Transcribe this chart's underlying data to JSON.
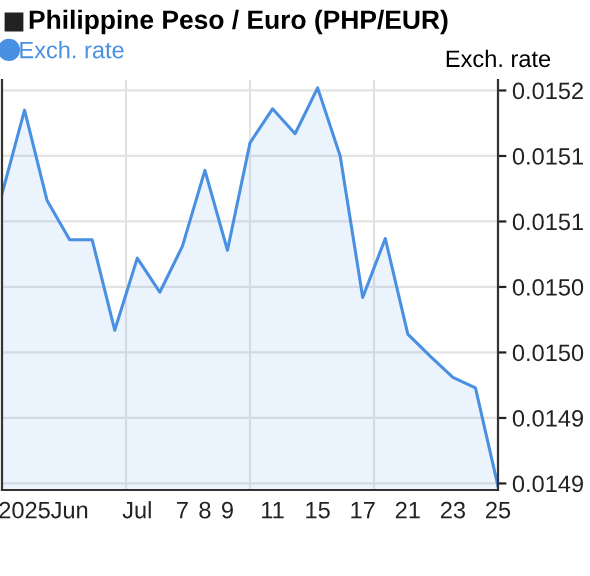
{
  "chart_data": {
    "type": "area",
    "title": "Philippine Peso / Euro (PHP/EUR)",
    "ylabel": "Exch. rate",
    "categories": [
      null,
      "2025",
      null,
      "Jun",
      null,
      null,
      "Jul",
      null,
      "7",
      "8",
      "9",
      null,
      "11",
      null,
      "15",
      null,
      "17",
      null,
      "21",
      null,
      "23",
      null,
      "25"
    ],
    "series": [
      {
        "name": "Exch. rate",
        "color": "#4a90e2",
        "values": [
          0.015071,
          0.015135,
          0.015066,
          0.015036,
          0.015036,
          0.014967,
          0.015022,
          0.014996,
          0.015031,
          0.015089,
          0.015028,
          0.01511,
          0.015136,
          0.015117,
          0.015152,
          0.0151,
          0.014992,
          0.015037,
          0.014964,
          0.014947,
          0.014931,
          0.014923,
          0.014848
        ]
      }
    ],
    "ylim": [
      0.014845,
      0.015158
    ],
    "yticks": [
      {
        "value": 0.01515,
        "label": "0.0152"
      },
      {
        "value": 0.0151,
        "label": "0.0151"
      },
      {
        "value": 0.01505,
        "label": "0.0151"
      },
      {
        "value": 0.015,
        "label": "0.0150"
      },
      {
        "value": 0.01495,
        "label": "0.0150"
      },
      {
        "value": 0.0149,
        "label": "0.0149"
      },
      {
        "value": 0.01485,
        "label": "0.0149"
      }
    ],
    "grid": true,
    "legend": "top left",
    "marker": "none",
    "line_style": "solid"
  }
}
